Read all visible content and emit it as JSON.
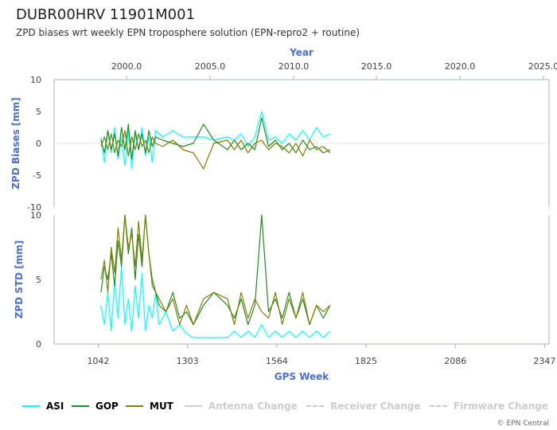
{
  "header": {
    "title": "DUBR00HRV 11901M001",
    "subtitle": "ZPD biases wrt weekly EPN troposphere solution (EPN-repro2 + routine)",
    "credit": "© EPN Central"
  },
  "colors": {
    "ASI": "#00ffff",
    "GOP": "#228b22",
    "MUT": "#808000",
    "axis_title": "#4a6fd6",
    "inactive": "#cccccc"
  },
  "legend": [
    {
      "label": "ASI",
      "color": "#00ffff",
      "style": "solid",
      "active": true
    },
    {
      "label": "GOP",
      "color": "#228b22",
      "style": "solid",
      "active": true
    },
    {
      "label": "MUT",
      "color": "#808000",
      "style": "solid",
      "active": true
    },
    {
      "label": "Antenna Change",
      "color": "#cccccc",
      "style": "solid",
      "active": false
    },
    {
      "label": "Receiver Change",
      "color": "#cccccc",
      "style": "dashed",
      "active": false
    },
    {
      "label": "Firmware Change",
      "color": "#cccccc",
      "style": "dashed",
      "active": false
    }
  ],
  "chart_data": [
    {
      "type": "line",
      "panel": "bias",
      "ylabel": "ZPD Biases [mm]",
      "top_axis_label": "Year",
      "top_ticks": [
        "2000.0",
        "2005.0",
        "2010.0",
        "2015.0",
        "2020.0",
        "2025.0"
      ],
      "y_ticks": [
        "10",
        "5",
        "0",
        "-5",
        "-10"
      ],
      "ylim": [
        -10,
        10
      ],
      "xlim": [
        913,
        2360
      ],
      "series": [
        {
          "name": "ASI",
          "x": [
            1050,
            1060,
            1070,
            1080,
            1090,
            1100,
            1110,
            1120,
            1130,
            1140,
            1150,
            1160,
            1170,
            1180,
            1190,
            1200,
            1210,
            1230,
            1260,
            1290,
            1320,
            1350,
            1380,
            1420,
            1440,
            1460,
            1480,
            1500,
            1520,
            1540,
            1560,
            1580,
            1600,
            1620,
            1640,
            1660,
            1680,
            1700,
            1720
          ],
          "y": [
            1.0,
            -3.0,
            2.0,
            -1.5,
            2.5,
            -2.5,
            1.0,
            -3.5,
            2.0,
            -4.0,
            1.5,
            -1.0,
            2.5,
            -2.0,
            1.0,
            -3.0,
            2.0,
            1.0,
            2.0,
            1.0,
            1.0,
            1.0,
            0.5,
            1.0,
            0.5,
            1.5,
            -0.5,
            1.0,
            5.0,
            0.5,
            1.0,
            0.0,
            1.5,
            0.5,
            2.0,
            0.5,
            2.5,
            1.0,
            1.5
          ]
        },
        {
          "name": "GOP",
          "x": [
            1050,
            1060,
            1070,
            1080,
            1090,
            1100,
            1110,
            1120,
            1130,
            1140,
            1150,
            1160,
            1170,
            1180,
            1190,
            1200,
            1210,
            1230,
            1260,
            1290,
            1320,
            1350,
            1380,
            1420,
            1440,
            1460,
            1480,
            1500,
            1520,
            1540,
            1560,
            1580,
            1600,
            1620,
            1640,
            1660,
            1680,
            1700,
            1720
          ],
          "y": [
            0.5,
            -1.5,
            2.0,
            -1.0,
            1.5,
            -2.0,
            2.5,
            -1.0,
            3.0,
            -2.5,
            2.0,
            -1.0,
            1.5,
            -1.5,
            2.0,
            -0.5,
            1.0,
            0.5,
            0.0,
            -0.5,
            0.0,
            3.0,
            0.5,
            -1.0,
            0.5,
            -1.0,
            0.0,
            -1.0,
            4.0,
            -0.5,
            0.5,
            -1.0,
            0.0,
            -1.5,
            0.5,
            -1.0,
            -0.5,
            -1.5,
            -1.0
          ]
        },
        {
          "name": "MUT",
          "x": [
            1050,
            1060,
            1070,
            1080,
            1090,
            1100,
            1110,
            1120,
            1130,
            1140,
            1150,
            1160,
            1170,
            1180,
            1190,
            1200,
            1210,
            1230,
            1260,
            1290,
            1320,
            1350,
            1380,
            1420,
            1440,
            1460,
            1480,
            1500,
            1520,
            1540,
            1560,
            1580,
            1600,
            1620,
            1640,
            1660,
            1680,
            1700,
            1720
          ],
          "y": [
            -0.5,
            1.0,
            -1.0,
            1.5,
            -1.5,
            0.5,
            -0.5,
            2.0,
            -2.0,
            1.0,
            -1.0,
            1.5,
            -0.5,
            0.5,
            -1.5,
            1.0,
            0.0,
            -0.5,
            0.5,
            -1.0,
            -1.5,
            -4.0,
            0.0,
            0.5,
            -1.0,
            0.5,
            -1.5,
            0.0,
            0.5,
            -1.0,
            0.0,
            -0.5,
            -1.5,
            0.0,
            -2.0,
            0.5,
            -1.0,
            -0.5,
            -1.5
          ]
        }
      ]
    },
    {
      "type": "line",
      "panel": "std",
      "ylabel": "ZPD STD [mm]",
      "xlabel": "GPS Week",
      "x_ticks": [
        "1042",
        "1303",
        "1564",
        "1825",
        "2086",
        "2347"
      ],
      "y_ticks": [
        "10",
        "5",
        "0"
      ],
      "ylim": [
        0,
        10
      ],
      "xlim": [
        913,
        2360
      ],
      "series": [
        {
          "name": "ASI",
          "x": [
            1050,
            1060,
            1070,
            1080,
            1090,
            1100,
            1110,
            1120,
            1130,
            1140,
            1150,
            1160,
            1170,
            1180,
            1190,
            1200,
            1210,
            1220,
            1240,
            1260,
            1280,
            1300,
            1320,
            1350,
            1380,
            1420,
            1440,
            1460,
            1480,
            1500,
            1520,
            1540,
            1560,
            1580,
            1600,
            1620,
            1640,
            1660,
            1680,
            1700,
            1720
          ],
          "y": [
            3.0,
            1.5,
            4.0,
            1.0,
            5.0,
            2.0,
            6.0,
            1.5,
            3.5,
            1.0,
            4.5,
            2.0,
            5.5,
            1.0,
            3.0,
            2.0,
            4.0,
            1.5,
            2.5,
            1.0,
            1.5,
            0.8,
            0.5,
            0.5,
            0.5,
            0.5,
            1.0,
            0.5,
            1.0,
            0.5,
            1.5,
            0.5,
            1.0,
            0.5,
            1.0,
            0.5,
            1.0,
            0.5,
            1.0,
            0.5,
            1.0
          ]
        },
        {
          "name": "GOP",
          "x": [
            1050,
            1060,
            1070,
            1080,
            1090,
            1100,
            1110,
            1120,
            1130,
            1140,
            1150,
            1160,
            1170,
            1180,
            1190,
            1200,
            1210,
            1220,
            1240,
            1260,
            1280,
            1300,
            1320,
            1350,
            1380,
            1420,
            1440,
            1460,
            1480,
            1500,
            1520,
            1540,
            1560,
            1580,
            1600,
            1620,
            1640,
            1660,
            1680,
            1700,
            1720
          ],
          "y": [
            4.0,
            6.0,
            5.0,
            7.0,
            4.5,
            8.0,
            6.0,
            10.0,
            7.0,
            9.0,
            5.0,
            8.5,
            6.0,
            10.0,
            7.0,
            5.0,
            4.0,
            3.0,
            2.5,
            4.0,
            2.0,
            2.5,
            1.5,
            3.0,
            4.0,
            3.0,
            2.0,
            3.5,
            1.5,
            3.0,
            10.0,
            2.5,
            3.5,
            2.0,
            4.0,
            2.0,
            3.5,
            1.5,
            3.0,
            2.0,
            3.0
          ]
        },
        {
          "name": "MUT",
          "x": [
            1050,
            1060,
            1070,
            1080,
            1090,
            1100,
            1110,
            1120,
            1130,
            1140,
            1150,
            1160,
            1170,
            1180,
            1190,
            1200,
            1210,
            1220,
            1240,
            1260,
            1280,
            1300,
            1320,
            1350,
            1380,
            1420,
            1440,
            1460,
            1480,
            1500,
            1520,
            1540,
            1560,
            1580,
            1600,
            1620,
            1640,
            1660,
            1680,
            1700,
            1720
          ],
          "y": [
            5.0,
            6.5,
            4.0,
            7.5,
            5.5,
            9.0,
            6.5,
            10.0,
            7.5,
            8.5,
            6.0,
            9.5,
            6.5,
            10.0,
            7.0,
            4.5,
            4.0,
            3.5,
            2.5,
            3.5,
            1.5,
            3.0,
            1.5,
            3.5,
            4.0,
            3.5,
            1.5,
            4.0,
            2.0,
            3.5,
            2.5,
            2.0,
            4.0,
            1.5,
            3.5,
            2.0,
            4.0,
            1.5,
            3.0,
            2.5,
            3.0
          ]
        }
      ]
    }
  ]
}
